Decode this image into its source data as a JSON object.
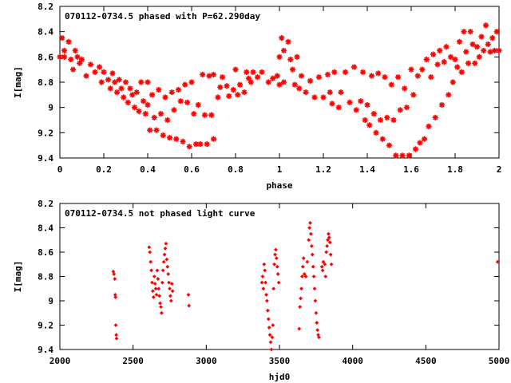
{
  "chart_data": [
    {
      "type": "scatter",
      "title": "070112-0734.5 phased with P=62.290day",
      "xlabel": "phase",
      "ylabel": "I[mag]",
      "xlim": [
        0,
        2
      ],
      "ylim": [
        9.4,
        8.2
      ],
      "y_reversed": true,
      "xticks": [
        0,
        0.2,
        0.4,
        0.6,
        0.8,
        1,
        1.2,
        1.4,
        1.6,
        1.8,
        2
      ],
      "xtick_labels": [
        "0",
        "0.2",
        "0.4",
        "0.6",
        "0.8",
        "1",
        "1.2",
        "1.4",
        "1.6",
        "1.8",
        "2"
      ],
      "yticks": [
        8.2,
        8.4,
        8.6,
        8.8,
        9,
        9.2,
        9.4
      ],
      "ytick_labels": [
        "8.2",
        "8.4",
        "8.6",
        "8.8",
        "9",
        "9.2",
        "9.4"
      ],
      "grid": false,
      "marker_color": "#ff0000",
      "marker": "star",
      "points": [
        [
          0.0,
          8.6
        ],
        [
          0.01,
          8.45
        ],
        [
          0.02,
          8.55
        ],
        [
          0.02,
          8.6
        ],
        [
          0.04,
          8.48
        ],
        [
          0.05,
          8.62
        ],
        [
          0.06,
          8.7
        ],
        [
          0.07,
          8.55
        ],
        [
          0.08,
          8.6
        ],
        [
          0.09,
          8.65
        ],
        [
          0.1,
          8.62
        ],
        [
          0.12,
          8.75
        ],
        [
          0.14,
          8.66
        ],
        [
          0.16,
          8.72
        ],
        [
          0.18,
          8.68
        ],
        [
          0.19,
          8.8
        ],
        [
          0.2,
          8.72
        ],
        [
          0.22,
          8.78
        ],
        [
          0.23,
          8.85
        ],
        [
          0.24,
          8.73
        ],
        [
          0.25,
          8.8
        ],
        [
          0.26,
          8.88
        ],
        [
          0.27,
          8.78
        ],
        [
          0.28,
          8.85
        ],
        [
          0.29,
          8.92
        ],
        [
          0.3,
          8.8
        ],
        [
          0.31,
          8.96
        ],
        [
          0.32,
          8.85
        ],
        [
          0.33,
          8.9
        ],
        [
          0.34,
          9.0
        ],
        [
          0.35,
          8.88
        ],
        [
          0.36,
          9.03
        ],
        [
          0.37,
          8.8
        ],
        [
          0.38,
          8.95
        ],
        [
          0.39,
          9.05
        ],
        [
          0.4,
          8.8
        ],
        [
          0.4,
          8.98
        ],
        [
          0.41,
          9.18
        ],
        [
          0.42,
          8.9
        ],
        [
          0.43,
          9.08
        ],
        [
          0.44,
          9.18
        ],
        [
          0.45,
          8.86
        ],
        [
          0.46,
          9.05
        ],
        [
          0.47,
          9.22
        ],
        [
          0.48,
          8.92
        ],
        [
          0.49,
          9.1
        ],
        [
          0.5,
          9.24
        ],
        [
          0.51,
          8.88
        ],
        [
          0.52,
          9.02
        ],
        [
          0.53,
          9.25
        ],
        [
          0.54,
          8.86
        ],
        [
          0.55,
          8.95
        ],
        [
          0.56,
          9.27
        ],
        [
          0.57,
          8.82
        ],
        [
          0.58,
          8.96
        ],
        [
          0.59,
          9.31
        ],
        [
          0.6,
          8.8
        ],
        [
          0.61,
          9.05
        ],
        [
          0.62,
          9.29
        ],
        [
          0.63,
          8.98
        ],
        [
          0.64,
          9.29
        ],
        [
          0.65,
          8.74
        ],
        [
          0.66,
          9.06
        ],
        [
          0.67,
          9.29
        ],
        [
          0.68,
          8.75
        ],
        [
          0.69,
          9.06
        ],
        [
          0.7,
          8.74
        ],
        [
          0.7,
          9.25
        ],
        [
          0.72,
          8.92
        ],
        [
          0.73,
          8.84
        ],
        [
          0.74,
          8.76
        ],
        [
          0.76,
          8.83
        ],
        [
          0.77,
          8.91
        ],
        [
          0.79,
          8.86
        ],
        [
          0.8,
          8.7
        ],
        [
          0.81,
          8.9
        ],
        [
          0.82,
          8.82
        ],
        [
          0.84,
          8.88
        ],
        [
          0.85,
          8.72
        ],
        [
          0.86,
          8.77
        ],
        [
          0.87,
          8.8
        ],
        [
          0.88,
          8.72
        ],
        [
          0.9,
          8.76
        ],
        [
          0.92,
          8.72
        ],
        [
          0.95,
          8.8
        ],
        [
          0.97,
          8.77
        ],
        [
          0.99,
          8.75
        ],
        [
          1.0,
          8.6
        ],
        [
          1.0,
          8.82
        ],
        [
          1.01,
          8.45
        ],
        [
          1.02,
          8.55
        ],
        [
          1.02,
          8.8
        ],
        [
          1.04,
          8.48
        ],
        [
          1.05,
          8.62
        ],
        [
          1.06,
          8.7
        ],
        [
          1.07,
          8.82
        ],
        [
          1.08,
          8.6
        ],
        [
          1.09,
          8.85
        ],
        [
          1.1,
          8.75
        ],
        [
          1.12,
          8.88
        ],
        [
          1.14,
          8.79
        ],
        [
          1.16,
          8.92
        ],
        [
          1.18,
          8.76
        ],
        [
          1.2,
          8.92
        ],
        [
          1.22,
          8.74
        ],
        [
          1.23,
          8.88
        ],
        [
          1.24,
          8.97
        ],
        [
          1.25,
          8.72
        ],
        [
          1.27,
          9.0
        ],
        [
          1.28,
          8.88
        ],
        [
          1.3,
          8.72
        ],
        [
          1.32,
          8.96
        ],
        [
          1.34,
          8.68
        ],
        [
          1.35,
          9.02
        ],
        [
          1.37,
          8.95
        ],
        [
          1.38,
          8.72
        ],
        [
          1.39,
          9.1
        ],
        [
          1.4,
          8.98
        ],
        [
          1.41,
          9.14
        ],
        [
          1.42,
          8.75
        ],
        [
          1.43,
          9.05
        ],
        [
          1.44,
          9.2
        ],
        [
          1.45,
          8.73
        ],
        [
          1.46,
          9.1
        ],
        [
          1.47,
          9.25
        ],
        [
          1.48,
          8.76
        ],
        [
          1.49,
          9.08
        ],
        [
          1.5,
          9.3
        ],
        [
          1.51,
          8.82
        ],
        [
          1.52,
          9.1
        ],
        [
          1.53,
          9.38
        ],
        [
          1.54,
          8.76
        ],
        [
          1.55,
          9.02
        ],
        [
          1.56,
          9.38
        ],
        [
          1.57,
          8.85
        ],
        [
          1.58,
          9.0
        ],
        [
          1.59,
          9.38
        ],
        [
          1.6,
          8.7
        ],
        [
          1.61,
          8.9
        ],
        [
          1.62,
          9.33
        ],
        [
          1.63,
          8.75
        ],
        [
          1.64,
          9.28
        ],
        [
          1.65,
          8.7
        ],
        [
          1.66,
          9.25
        ],
        [
          1.67,
          8.62
        ],
        [
          1.68,
          9.15
        ],
        [
          1.69,
          8.76
        ],
        [
          1.7,
          8.58
        ],
        [
          1.71,
          9.08
        ],
        [
          1.72,
          8.66
        ],
        [
          1.73,
          8.55
        ],
        [
          1.74,
          8.98
        ],
        [
          1.75,
          8.64
        ],
        [
          1.76,
          8.52
        ],
        [
          1.77,
          8.9
        ],
        [
          1.78,
          8.6
        ],
        [
          1.79,
          8.8
        ],
        [
          1.8,
          8.62
        ],
        [
          1.81,
          8.68
        ],
        [
          1.82,
          8.48
        ],
        [
          1.83,
          8.72
        ],
        [
          1.84,
          8.4
        ],
        [
          1.85,
          8.56
        ],
        [
          1.86,
          8.65
        ],
        [
          1.87,
          8.4
        ],
        [
          1.88,
          8.5
        ],
        [
          1.89,
          8.65
        ],
        [
          1.9,
          8.52
        ],
        [
          1.91,
          8.6
        ],
        [
          1.92,
          8.44
        ],
        [
          1.93,
          8.55
        ],
        [
          1.94,
          8.35
        ],
        [
          1.95,
          8.5
        ],
        [
          1.96,
          8.56
        ],
        [
          1.97,
          8.45
        ],
        [
          1.98,
          8.55
        ],
        [
          1.99,
          8.4
        ],
        [
          2.0,
          8.55
        ]
      ]
    },
    {
      "type": "scatter",
      "title": "070112-0734.5 not phased light curve",
      "xlabel": "hjd0",
      "ylabel": "I[mag]",
      "xlim": [
        2000,
        5000
      ],
      "ylim": [
        9.4,
        8.2
      ],
      "y_reversed": true,
      "xticks": [
        2000,
        2500,
        3000,
        3500,
        4000,
        4500,
        5000
      ],
      "xtick_labels": [
        "2000",
        "2500",
        "3000",
        "3500",
        "4000",
        "4500",
        "5000"
      ],
      "yticks": [
        8.2,
        8.4,
        8.6,
        8.8,
        9,
        9.2,
        9.4
      ],
      "ytick_labels": [
        "8.2",
        "8.4",
        "8.6",
        "8.8",
        "9",
        "9.2",
        "9.4"
      ],
      "grid": false,
      "marker_color": "#ff0000",
      "marker": "diamond",
      "points": [
        [
          2365,
          8.76
        ],
        [
          2370,
          8.78
        ],
        [
          2375,
          8.82
        ],
        [
          2378,
          8.95
        ],
        [
          2380,
          8.97
        ],
        [
          2382,
          9.2
        ],
        [
          2385,
          9.28
        ],
        [
          2387,
          9.31
        ],
        [
          2610,
          8.56
        ],
        [
          2615,
          8.6
        ],
        [
          2620,
          8.68
        ],
        [
          2625,
          8.75
        ],
        [
          2630,
          8.85
        ],
        [
          2635,
          8.92
        ],
        [
          2640,
          8.97
        ],
        [
          2645,
          8.8
        ],
        [
          2650,
          8.86
        ],
        [
          2655,
          8.9
        ],
        [
          2660,
          8.95
        ],
        [
          2665,
          8.75
        ],
        [
          2670,
          8.82
        ],
        [
          2675,
          8.9
        ],
        [
          2680,
          8.96
        ],
        [
          2685,
          9.02
        ],
        [
          2690,
          9.05
        ],
        [
          2695,
          9.1
        ],
        [
          2700,
          8.85
        ],
        [
          2705,
          8.75
        ],
        [
          2710,
          8.68
        ],
        [
          2715,
          8.62
        ],
        [
          2720,
          8.57
        ],
        [
          2725,
          8.53
        ],
        [
          2730,
          8.66
        ],
        [
          2735,
          8.72
        ],
        [
          2740,
          8.78
        ],
        [
          2745,
          8.85
        ],
        [
          2750,
          8.9
        ],
        [
          2755,
          8.96
        ],
        [
          2760,
          9.0
        ],
        [
          2765,
          8.86
        ],
        [
          2770,
          8.92
        ],
        [
          2878,
          8.95
        ],
        [
          2882,
          9.04
        ],
        [
          3380,
          8.85
        ],
        [
          3385,
          8.8
        ],
        [
          3390,
          8.9
        ],
        [
          3395,
          8.7
        ],
        [
          3400,
          8.75
        ],
        [
          3405,
          8.85
        ],
        [
          3410,
          8.95
        ],
        [
          3415,
          9.0
        ],
        [
          3420,
          9.08
        ],
        [
          3425,
          9.15
        ],
        [
          3430,
          9.22
        ],
        [
          3435,
          9.28
        ],
        [
          3440,
          9.34
        ],
        [
          3445,
          9.4
        ],
        [
          3450,
          9.3
        ],
        [
          3455,
          9.2
        ],
        [
          3460,
          8.9
        ],
        [
          3465,
          8.7
        ],
        [
          3470,
          8.62
        ],
        [
          3475,
          8.58
        ],
        [
          3480,
          8.65
        ],
        [
          3485,
          8.72
        ],
        [
          3490,
          8.78
        ],
        [
          3495,
          8.85
        ],
        [
          3635,
          9.23
        ],
        [
          3640,
          9.05
        ],
        [
          3645,
          8.98
        ],
        [
          3650,
          8.9
        ],
        [
          3655,
          8.8
        ],
        [
          3660,
          8.72
        ],
        [
          3665,
          8.65
        ],
        [
          3670,
          8.78
        ],
        [
          3680,
          8.8
        ],
        [
          3690,
          8.68
        ],
        [
          3700,
          8.5
        ],
        [
          3705,
          8.4
        ],
        [
          3710,
          8.36
        ],
        [
          3715,
          8.45
        ],
        [
          3720,
          8.55
        ],
        [
          3725,
          8.62
        ],
        [
          3730,
          8.72
        ],
        [
          3735,
          8.8
        ],
        [
          3740,
          8.9
        ],
        [
          3745,
          9.0
        ],
        [
          3750,
          9.1
        ],
        [
          3755,
          9.18
        ],
        [
          3760,
          9.24
        ],
        [
          3765,
          9.28
        ],
        [
          3770,
          9.3
        ],
        [
          3790,
          8.72
        ],
        [
          3795,
          8.75
        ],
        [
          3800,
          8.68
        ],
        [
          3810,
          8.7
        ],
        [
          3815,
          8.8
        ],
        [
          3820,
          8.6
        ],
        [
          3825,
          8.55
        ],
        [
          3830,
          8.5
        ],
        [
          3835,
          8.45
        ],
        [
          3840,
          8.48
        ],
        [
          3845,
          8.52
        ],
        [
          3850,
          8.62
        ],
        [
          3855,
          8.7
        ],
        [
          4990,
          8.68
        ]
      ]
    }
  ]
}
